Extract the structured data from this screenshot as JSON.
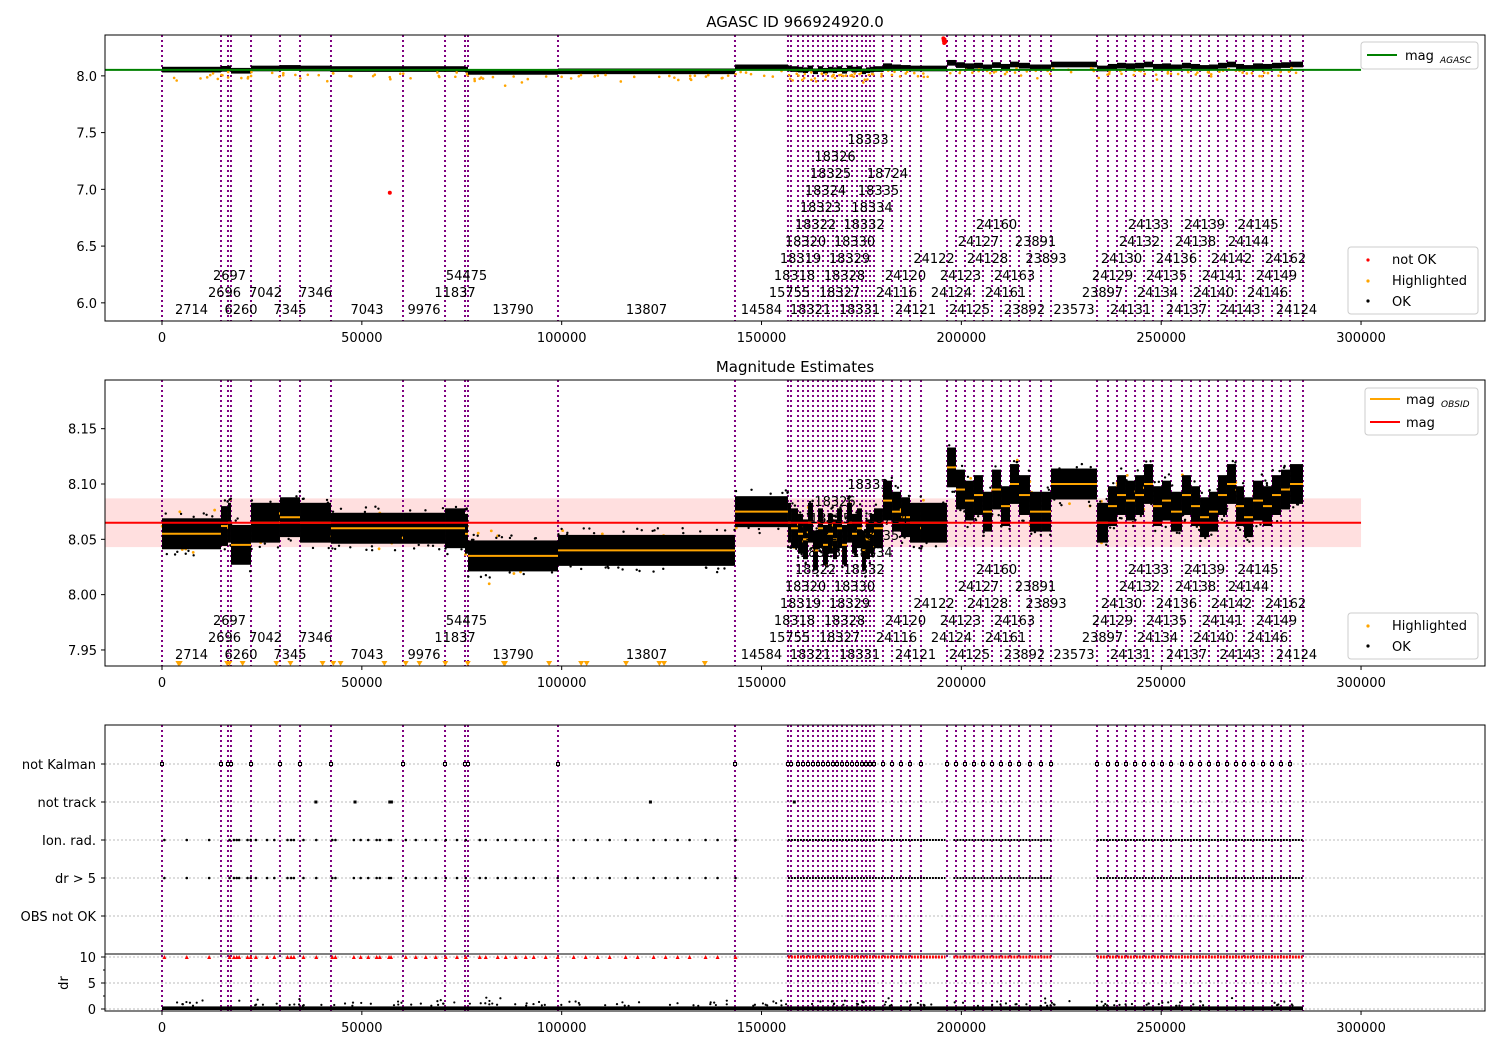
{
  "chart_data": [
    {
      "type": "scatter",
      "title": "AGASC ID 966924920.0",
      "xlabel": "",
      "ylabel": "",
      "xlim": [
        -14300,
        331000
      ],
      "ylim": [
        5.84,
        8.36
      ],
      "xticks": [
        "0",
        "50000",
        "100000",
        "150000",
        "200000",
        "250000",
        "300000"
      ],
      "yticks": [
        "6.0",
        "6.5",
        "7.0",
        "7.5",
        "8.0"
      ],
      "mag_agasc": 8.053,
      "legend_top": {
        "line_label": "mag",
        "line_sub": "AGASC",
        "line_color": "#008000"
      },
      "legend_bottom": [
        "not OK",
        "Highlighted",
        "OK"
      ],
      "not_ok_points": [
        {
          "x": 57000,
          "y": 6.97
        },
        {
          "x": 195500,
          "y": 8.33
        },
        {
          "x": 195600,
          "y": 8.31
        },
        {
          "x": 195700,
          "y": 8.29
        },
        {
          "x": 195800,
          "y": 8.32
        },
        {
          "x": 196000,
          "y": 8.3
        }
      ]
    },
    {
      "type": "scatter",
      "title": "Magnitude Estimates",
      "xlim": [
        -14300,
        331000
      ],
      "ylim": [
        7.9355,
        8.194
      ],
      "xticks": [
        "0",
        "50000",
        "100000",
        "150000",
        "200000",
        "250000",
        "300000"
      ],
      "yticks": [
        "7.95",
        "8.00",
        "8.05",
        "8.10",
        "8.15"
      ],
      "mag": 8.065,
      "mag_band": [
        8.043,
        8.087
      ],
      "legend_top": [
        {
          "label": "mag",
          "sub": "OBSID",
          "color": "#ffa500"
        },
        {
          "label": "mag",
          "sub": "",
          "color": "#ff0000"
        }
      ],
      "legend_bottom": [
        "Highlighted",
        "OK"
      ]
    },
    {
      "type": "scatter",
      "title": "",
      "flag_rows": [
        "not Kalman",
        "not track",
        "Ion. rad.",
        "dr > 5",
        "OBS not OK"
      ],
      "dr_ylabel": "dr",
      "dr_yticks": [
        "0",
        "5",
        "10"
      ],
      "xticks": [
        "0",
        "50000",
        "100000",
        "150000",
        "200000",
        "250000",
        "300000"
      ],
      "not_track_x": [
        38500,
        48300,
        57000,
        57400,
        122200,
        158200
      ],
      "ion_rad_sparse_x": [
        600,
        6200,
        11800,
        16900,
        18000,
        18700,
        19300,
        21400,
        22200,
        23500,
        26300,
        28100,
        31400,
        32300,
        33000,
        35400,
        38600,
        42600,
        43400,
        48000,
        49700,
        51600,
        53700,
        54500,
        56800,
        57300,
        61000,
        63500,
        66000,
        68500,
        71000,
        73800,
        76000,
        79500,
        81000,
        84000,
        86000,
        88500,
        91000,
        93000,
        96000,
        99000,
        103000,
        106000,
        109000,
        112000,
        116000,
        119000,
        123000,
        126000,
        129000,
        132000,
        136000,
        139000,
        143500
      ],
      "ion_rad_dense_ranges": [
        [
          156600,
          196000
        ],
        [
          198000,
          222500
        ],
        [
          233900,
          285400
        ]
      ],
      "obs": {
        "starts": [
          0,
          14760,
          16510,
          17260,
          22270,
          29520,
          34530,
          42280,
          60300,
          70810,
          75810,
          76560,
          99080,
          143360,
          156620,
          157380,
          159130,
          160380,
          161630,
          162880,
          164130,
          165380,
          166630,
          167880,
          168890,
          170140,
          171390,
          172640,
          173890,
          175140,
          176140,
          177140,
          178140,
          180390,
          182650,
          184900,
          187150,
          189900,
          196410,
          198660,
          200910,
          203160,
          205410,
          207670,
          209920,
          212170,
          214420,
          217170,
          219930,
          222430,
          233940,
          236690,
          238940,
          241190,
          243450,
          245700,
          247950,
          250200,
          252450,
          255200,
          257460,
          259710,
          261960,
          264210,
          266460,
          268720,
          270720,
          272970,
          275470,
          277720,
          279970,
          282230
        ],
        "end": 285480,
        "obsids": [
          "2714",
          "2696",
          "2697",
          "6260",
          "7042",
          "7345",
          "7346",
          "7043",
          "9976",
          "11837",
          "54475",
          "13790",
          "13807",
          "14584",
          "15755",
          "18318",
          "18319",
          "18320",
          "18321",
          "18322",
          "18323",
          "18324",
          "18325",
          "18326",
          "18327",
          "18328",
          "18329",
          "18330",
          "18331",
          "18332",
          "18333",
          "18334",
          "18335",
          "18724",
          "24116",
          "24120",
          "24121",
          "24122",
          "24124",
          "24123",
          "24125",
          "24127",
          "24128",
          "24160",
          "24161",
          "24163",
          "23892",
          "23891",
          "23893",
          "23573",
          "23897",
          "24129",
          "24130",
          "24131",
          "24132",
          "24133",
          "24134",
          "24135",
          "24136",
          "24137",
          "24138",
          "24139",
          "24140",
          "24141",
          "24142",
          "24143",
          "24144",
          "24145",
          "24146",
          "24149",
          "24162",
          "24124"
        ],
        "mag_obsid": [
          8.055,
          8.062,
          8.065,
          8.045,
          8.065,
          8.07,
          8.065,
          8.06,
          8.06,
          8.06,
          8.055,
          8.035,
          8.04,
          8.075,
          8.065,
          8.06,
          8.055,
          8.05,
          8.065,
          8.04,
          8.06,
          8.045,
          8.055,
          8.05,
          8.06,
          8.045,
          8.065,
          8.055,
          8.06,
          8.04,
          8.05,
          8.055,
          8.06,
          8.085,
          8.075,
          8.07,
          8.065,
          8.065,
          8.115,
          8.095,
          8.085,
          8.09,
          8.075,
          8.095,
          8.08,
          8.1,
          8.09,
          8.075,
          8.075,
          8.1,
          8.065,
          8.08,
          8.09,
          8.085,
          8.09,
          8.1,
          8.08,
          8.085,
          8.075,
          8.09,
          8.08,
          8.07,
          8.075,
          8.09,
          8.1,
          8.08,
          8.07,
          8.085,
          8.08,
          8.09,
          8.095,
          8.1
        ]
      }
    }
  ],
  "colors": {
    "ok": "#000000",
    "highlighted": "#ffa500",
    "not_ok": "#ff0000",
    "obs_line": "#800080",
    "mag_agasc": "#008000",
    "mag": "#ff0000",
    "mag_obsid": "#ffa500",
    "band": "#ffc0c0"
  }
}
